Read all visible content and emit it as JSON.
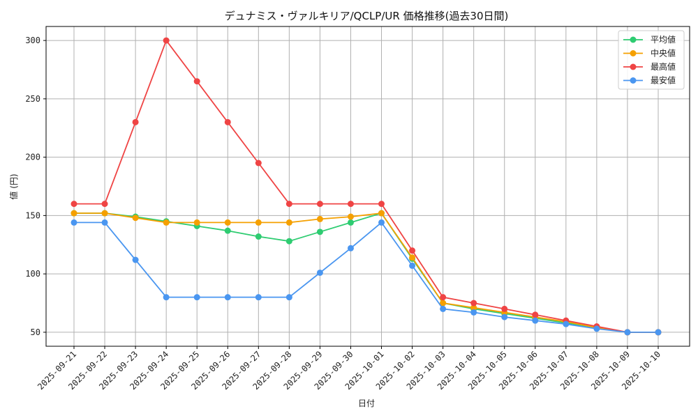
{
  "chart_data": {
    "type": "line",
    "title": "デュナミス・ヴァルキリア/QCLP/UR 価格推移(過去30日間)",
    "xlabel": "日付",
    "ylabel": "値 (円)",
    "ylim": [
      38,
      312
    ],
    "yticks": [
      50,
      100,
      150,
      200,
      250,
      300
    ],
    "grid": true,
    "legend_position": "top-right",
    "categories": [
      "2025-09-21",
      "2025-09-22",
      "2025-09-23",
      "2025-09-24",
      "2025-09-25",
      "2025-09-26",
      "2025-09-27",
      "2025-09-28",
      "2025-09-29",
      "2025-09-30",
      "2025-10-01",
      "2025-10-02",
      "2025-10-03",
      "2025-10-04",
      "2025-10-05",
      "2025-10-06",
      "2025-10-07",
      "2025-10-08",
      "2025-10-09",
      "2025-10-10"
    ],
    "series": [
      {
        "name": "平均値",
        "color": "#2ecc71",
        "values": [
          152,
          152,
          149,
          145,
          141,
          137,
          132,
          128,
          136,
          144,
          152,
          113,
          75,
          70,
          66,
          62,
          58,
          54,
          50,
          50
        ]
      },
      {
        "name": "中央値",
        "color": "#f5a000",
        "values": [
          152,
          152,
          148,
          144,
          144,
          144,
          144,
          144,
          147,
          149,
          152,
          114,
          75,
          71,
          67,
          63,
          59,
          54,
          50,
          50
        ]
      },
      {
        "name": "最高値",
        "color": "#ef4444",
        "values": [
          160,
          160,
          230,
          300,
          265,
          230,
          195,
          160,
          160,
          160,
          160,
          120,
          80,
          75,
          70,
          65,
          60,
          55,
          50,
          50
        ]
      },
      {
        "name": "最安値",
        "color": "#4a96f0",
        "values": [
          144,
          144,
          112,
          80,
          80,
          80,
          80,
          80,
          101,
          122,
          144,
          107,
          70,
          67,
          63,
          60,
          57,
          53,
          50,
          50
        ]
      }
    ]
  }
}
